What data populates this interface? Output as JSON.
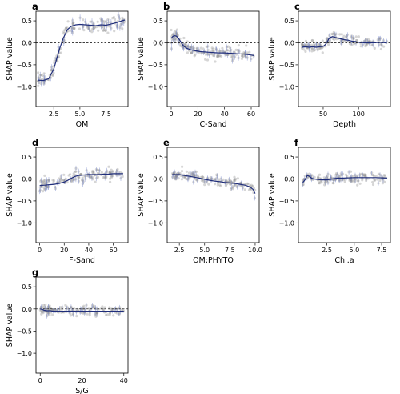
{
  "chart_data": [
    {
      "panel": "a",
      "type": "scatter",
      "xlabel": "OM",
      "ylabel": "SHAP value",
      "xlim": [
        0.8,
        9.6
      ],
      "ylim": [
        -1.45,
        0.72
      ],
      "xticks": [
        2.5,
        5.0,
        7.5
      ],
      "xtick_labels": [
        "2.5",
        "5.0",
        "7.5"
      ],
      "yticks": [
        -1.0,
        -0.5,
        0.0,
        0.5
      ],
      "ytick_labels": [
        "−1.0",
        "−0.5",
        "0.0",
        "0.5"
      ],
      "zero_line": true,
      "trend": {
        "x": [
          1.0,
          1.5,
          2.0,
          2.5,
          2.8,
          3.1,
          3.4,
          3.8,
          4.2,
          4.6,
          5.0,
          5.5,
          6.0,
          6.5,
          7.0,
          7.5,
          8.0,
          8.5,
          9.0,
          9.3
        ],
        "y": [
          -0.85,
          -0.86,
          -0.82,
          -0.6,
          -0.35,
          -0.1,
          0.1,
          0.3,
          0.38,
          0.41,
          0.42,
          0.41,
          0.4,
          0.39,
          0.41,
          0.4,
          0.43,
          0.46,
          0.5,
          0.52
        ]
      },
      "scatter_band": 0.08
    },
    {
      "panel": "b",
      "type": "scatter",
      "xlabel": "C-Sand",
      "ylabel": "SHAP value",
      "xlim": [
        -3,
        66
      ],
      "ylim": [
        -1.45,
        0.72
      ],
      "xticks": [
        0,
        20,
        40,
        60
      ],
      "xtick_labels": [
        "0",
        "20",
        "40",
        "60"
      ],
      "yticks": [
        -1.0,
        -0.5,
        0.0,
        0.5
      ],
      "ytick_labels": [
        "−1.0",
        "−0.5",
        "0.0",
        "0.5"
      ],
      "zero_line": true,
      "trend": {
        "x": [
          0,
          1,
          2,
          3,
          4,
          5,
          6,
          7,
          8,
          9,
          10,
          12,
          15,
          18,
          22,
          26,
          30,
          35,
          40,
          45,
          50,
          55,
          60,
          62
        ],
        "y": [
          0.1,
          0.14,
          0.16,
          0.16,
          0.15,
          0.12,
          0.08,
          0.03,
          -0.02,
          -0.06,
          -0.09,
          -0.13,
          -0.16,
          -0.18,
          -0.2,
          -0.21,
          -0.22,
          -0.23,
          -0.23,
          -0.24,
          -0.25,
          -0.26,
          -0.28,
          -0.29
        ]
      },
      "scatter_band": 0.07
    },
    {
      "panel": "c",
      "type": "scatter",
      "xlabel": "Depth",
      "ylabel": "SHAP value",
      "xlim": [
        15,
        145
      ],
      "ylim": [
        -1.45,
        0.72
      ],
      "xticks": [
        50,
        100
      ],
      "xtick_labels": [
        "50",
        "100"
      ],
      "yticks": [
        -1.0,
        -0.5,
        0.0,
        0.5
      ],
      "ytick_labels": [
        "−1.0",
        "−0.5",
        "0.0",
        "0.5"
      ],
      "zero_line": true,
      "trend": {
        "x": [
          20,
          25,
          30,
          35,
          40,
          45,
          50,
          53,
          56,
          58,
          60,
          63,
          66,
          70,
          75,
          80,
          85,
          90,
          95,
          100,
          110,
          120,
          130,
          140
        ],
        "y": [
          -0.1,
          -0.09,
          -0.1,
          -0.09,
          -0.1,
          -0.09,
          -0.08,
          -0.04,
          0.03,
          0.09,
          0.12,
          0.14,
          0.13,
          0.11,
          0.09,
          0.07,
          0.06,
          0.04,
          0.03,
          0.01,
          0.0,
          0.0,
          0.01,
          0.0
        ]
      },
      "scatter_band": 0.06
    },
    {
      "panel": "d",
      "type": "scatter",
      "xlabel": "F-Sand",
      "ylabel": "SHAP value",
      "xlim": [
        -3,
        72
      ],
      "ylim": [
        -1.45,
        0.72
      ],
      "xticks": [
        0,
        20,
        40,
        60
      ],
      "xtick_labels": [
        "0",
        "20",
        "40",
        "60"
      ],
      "yticks": [
        -1.0,
        -0.5,
        0.0,
        0.5
      ],
      "ytick_labels": [
        "−1.0",
        "−0.5",
        "0.0",
        "0.5"
      ],
      "zero_line": true,
      "trend": {
        "x": [
          0,
          4,
          8,
          12,
          16,
          20,
          23,
          26,
          29,
          32,
          36,
          40,
          44,
          48,
          52,
          56,
          60,
          65,
          68
        ],
        "y": [
          -0.15,
          -0.14,
          -0.13,
          -0.12,
          -0.1,
          -0.07,
          -0.03,
          0.02,
          0.06,
          0.08,
          0.09,
          0.1,
          0.1,
          0.1,
          0.11,
          0.11,
          0.12,
          0.12,
          0.12
        ]
      },
      "scatter_band": 0.07
    },
    {
      "panel": "e",
      "type": "scatter",
      "xlabel": "OM:PHYTO",
      "ylabel": "SHAP value",
      "xlim": [
        1.3,
        10.4
      ],
      "ylim": [
        -1.45,
        0.72
      ],
      "xticks": [
        2.5,
        5.0,
        7.5,
        10.0
      ],
      "xtick_labels": [
        "2.5",
        "5.0",
        "7.5",
        "10.0"
      ],
      "yticks": [
        -1.0,
        -0.5,
        0.0,
        0.5
      ],
      "ytick_labels": [
        "−1.0",
        "−0.5",
        "0.0",
        "0.5"
      ],
      "zero_line": true,
      "trend": {
        "x": [
          1.8,
          2.5,
          3.0,
          3.5,
          4.0,
          4.5,
          5.0,
          5.5,
          6.0,
          6.5,
          7.0,
          7.5,
          8.0,
          8.5,
          9.0,
          9.5,
          9.8,
          10.0
        ],
        "y": [
          0.1,
          0.1,
          0.08,
          0.06,
          0.04,
          0.02,
          -0.01,
          -0.03,
          -0.05,
          -0.06,
          -0.08,
          -0.09,
          -0.1,
          -0.12,
          -0.14,
          -0.18,
          -0.24,
          -0.33
        ]
      },
      "scatter_band": 0.06
    },
    {
      "panel": "f",
      "type": "scatter",
      "xlabel": "Chl.a",
      "ylabel": "SHAP value",
      "xlim": [
        -0.1,
        8.3
      ],
      "ylim": [
        -1.45,
        0.72
      ],
      "xticks": [
        2.5,
        5.0,
        7.5
      ],
      "xtick_labels": [
        "2.5",
        "5.0",
        "7.5"
      ],
      "yticks": [
        -1.0,
        -0.5,
        0.0,
        0.5
      ],
      "ytick_labels": [
        "−1.0",
        "−0.5",
        "0.0",
        "0.5"
      ],
      "zero_line": true,
      "trend": {
        "x": [
          0.3,
          0.5,
          0.7,
          0.9,
          1.1,
          1.3,
          1.6,
          2.0,
          2.5,
          3.0,
          3.5,
          4.0,
          5.0,
          6.0,
          7.0,
          8.0
        ],
        "y": [
          -0.08,
          -0.02,
          0.08,
          0.06,
          0.02,
          0.0,
          -0.01,
          -0.02,
          -0.02,
          0.0,
          0.02,
          0.02,
          0.03,
          0.03,
          0.03,
          0.02
        ]
      },
      "scatter_band": 0.06
    },
    {
      "panel": "g",
      "type": "scatter",
      "xlabel": "S/G",
      "ylabel": "SHAP value",
      "xlim": [
        -2,
        42
      ],
      "ylim": [
        -1.45,
        0.72
      ],
      "xticks": [
        0,
        20,
        40
      ],
      "xtick_labels": [
        "0",
        "20",
        "40"
      ],
      "yticks": [
        -1.0,
        -0.5,
        0.0,
        0.5
      ],
      "ytick_labels": [
        "−1.0",
        "−0.5",
        "0.0",
        "0.5"
      ],
      "zero_line": true,
      "trend": {
        "x": [
          0,
          1,
          2,
          3,
          4,
          5,
          6,
          8,
          10,
          13,
          16,
          20,
          25,
          30,
          35,
          40
        ],
        "y": [
          0.0,
          -0.01,
          -0.03,
          -0.04,
          -0.04,
          -0.04,
          -0.05,
          -0.05,
          -0.05,
          -0.05,
          -0.05,
          -0.05,
          -0.05,
          -0.05,
          -0.05,
          -0.05
        ]
      },
      "scatter_band": 0.06
    }
  ],
  "colors": {
    "points": "#8a8a8a",
    "trend": "#1f2d7a",
    "error_bars": "#7a8bd0"
  }
}
